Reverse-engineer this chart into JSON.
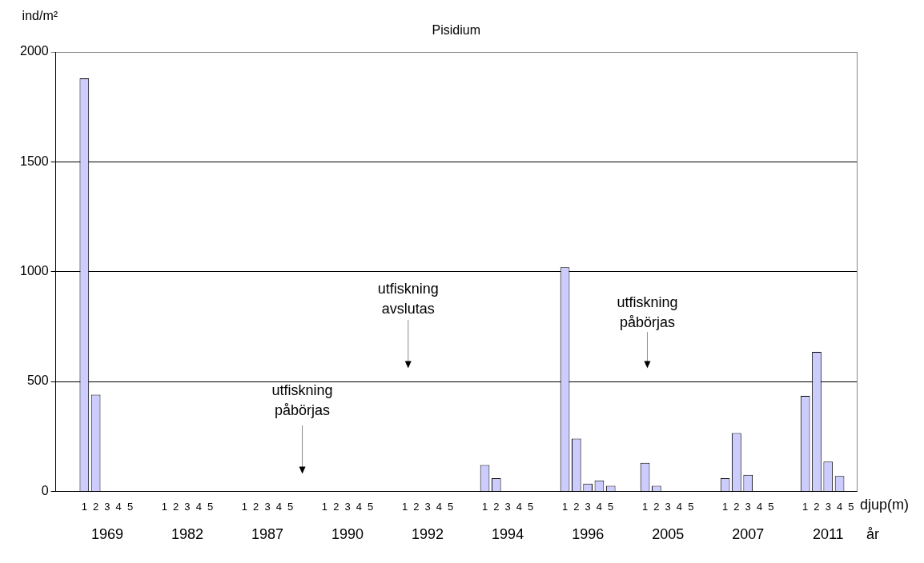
{
  "chart_data": {
    "type": "bar",
    "title": "Pisidium",
    "ylabel": "ind/m²",
    "xlabel": "djup(m)",
    "categories": [
      null,
      null,
      "1",
      "2",
      "3",
      "4",
      "5",
      null,
      null,
      "1",
      "2",
      "3",
      "4",
      "5",
      null,
      null,
      "1",
      "2",
      "3",
      "4",
      "5",
      null,
      null,
      "1",
      "2",
      "3",
      "4",
      "5",
      null,
      null,
      "1",
      "2",
      "3",
      "4",
      "5",
      null,
      null,
      "1",
      "2",
      "3",
      "4",
      "5",
      null,
      null,
      "1",
      "2",
      "3",
      "4",
      "5",
      null,
      null,
      "1",
      "2",
      "3",
      "4",
      "5",
      null,
      null,
      "1",
      "2",
      "3",
      "4",
      "5",
      null,
      null,
      "1",
      "2",
      "3",
      "4",
      "5"
    ],
    "values": [
      null,
      null,
      1880,
      440,
      0,
      0,
      0,
      null,
      null,
      0,
      0,
      0,
      0,
      0,
      null,
      null,
      0,
      0,
      0,
      0,
      0,
      null,
      null,
      0,
      0,
      0,
      0,
      0,
      null,
      null,
      0,
      0,
      0,
      0,
      0,
      null,
      null,
      120,
      60,
      0,
      0,
      0,
      null,
      null,
      1020,
      240,
      35,
      50,
      25,
      null,
      null,
      130,
      25,
      0,
      0,
      0,
      null,
      null,
      60,
      265,
      75,
      0,
      0,
      null,
      null,
      435,
      635,
      135,
      70,
      0
    ],
    "color": "#ccccff",
    "ylim": [
      0,
      2000
    ],
    "yticks": [
      0,
      500,
      1000,
      1500,
      2000
    ],
    "grid": "y",
    "annotations": [
      "1969",
      "1982",
      "1987",
      "1990",
      "1992",
      "1994",
      "1996",
      "2005",
      "2007",
      "2011",
      "år",
      "utfiskning\npåbörjas",
      "utfiskning\navslutas",
      "utfiskning\npåbörjas"
    ]
  }
}
